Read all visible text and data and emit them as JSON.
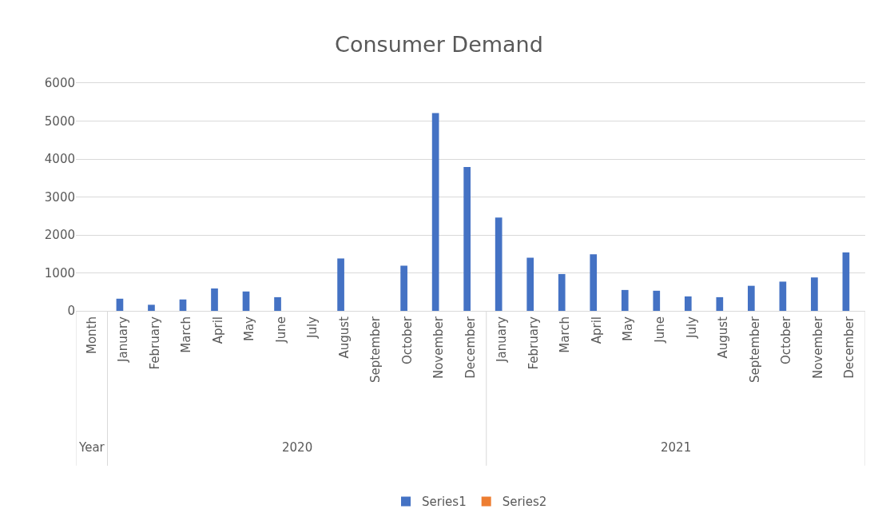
{
  "chart_data": {
    "type": "bar",
    "title": "Consumer Demand",
    "categories": [
      "Month",
      "January",
      "February",
      "March",
      "April",
      "May",
      "June",
      "July",
      "August",
      "September",
      "October",
      "November",
      "December",
      "January",
      "February",
      "March",
      "April",
      "May",
      "June",
      "July",
      "August",
      "September",
      "October",
      "November",
      "December"
    ],
    "series": [
      {
        "name": "Series1",
        "color": "#4472c4",
        "values": [
          null,
          320,
          160,
          300,
          590,
          510,
          360,
          null,
          1380,
          null,
          1190,
          5210,
          3790,
          2460,
          1400,
          970,
          1490,
          550,
          530,
          380,
          360,
          660,
          770,
          880,
          1540
        ]
      },
      {
        "name": "Series2",
        "color": "#ed7d31",
        "values": [
          null,
          null,
          null,
          null,
          null,
          null,
          null,
          null,
          null,
          null,
          null,
          null,
          null,
          null,
          null,
          null,
          null,
          null,
          null,
          null,
          null,
          null,
          null,
          null,
          null
        ]
      }
    ],
    "annotations": [
      "Year",
      "2020",
      "2021"
    ],
    "ylim": [
      0,
      6000
    ],
    "yticks": [
      0,
      1000,
      2000,
      3000,
      4000,
      5000,
      6000
    ],
    "grid": "y",
    "legend": "bottom"
  }
}
